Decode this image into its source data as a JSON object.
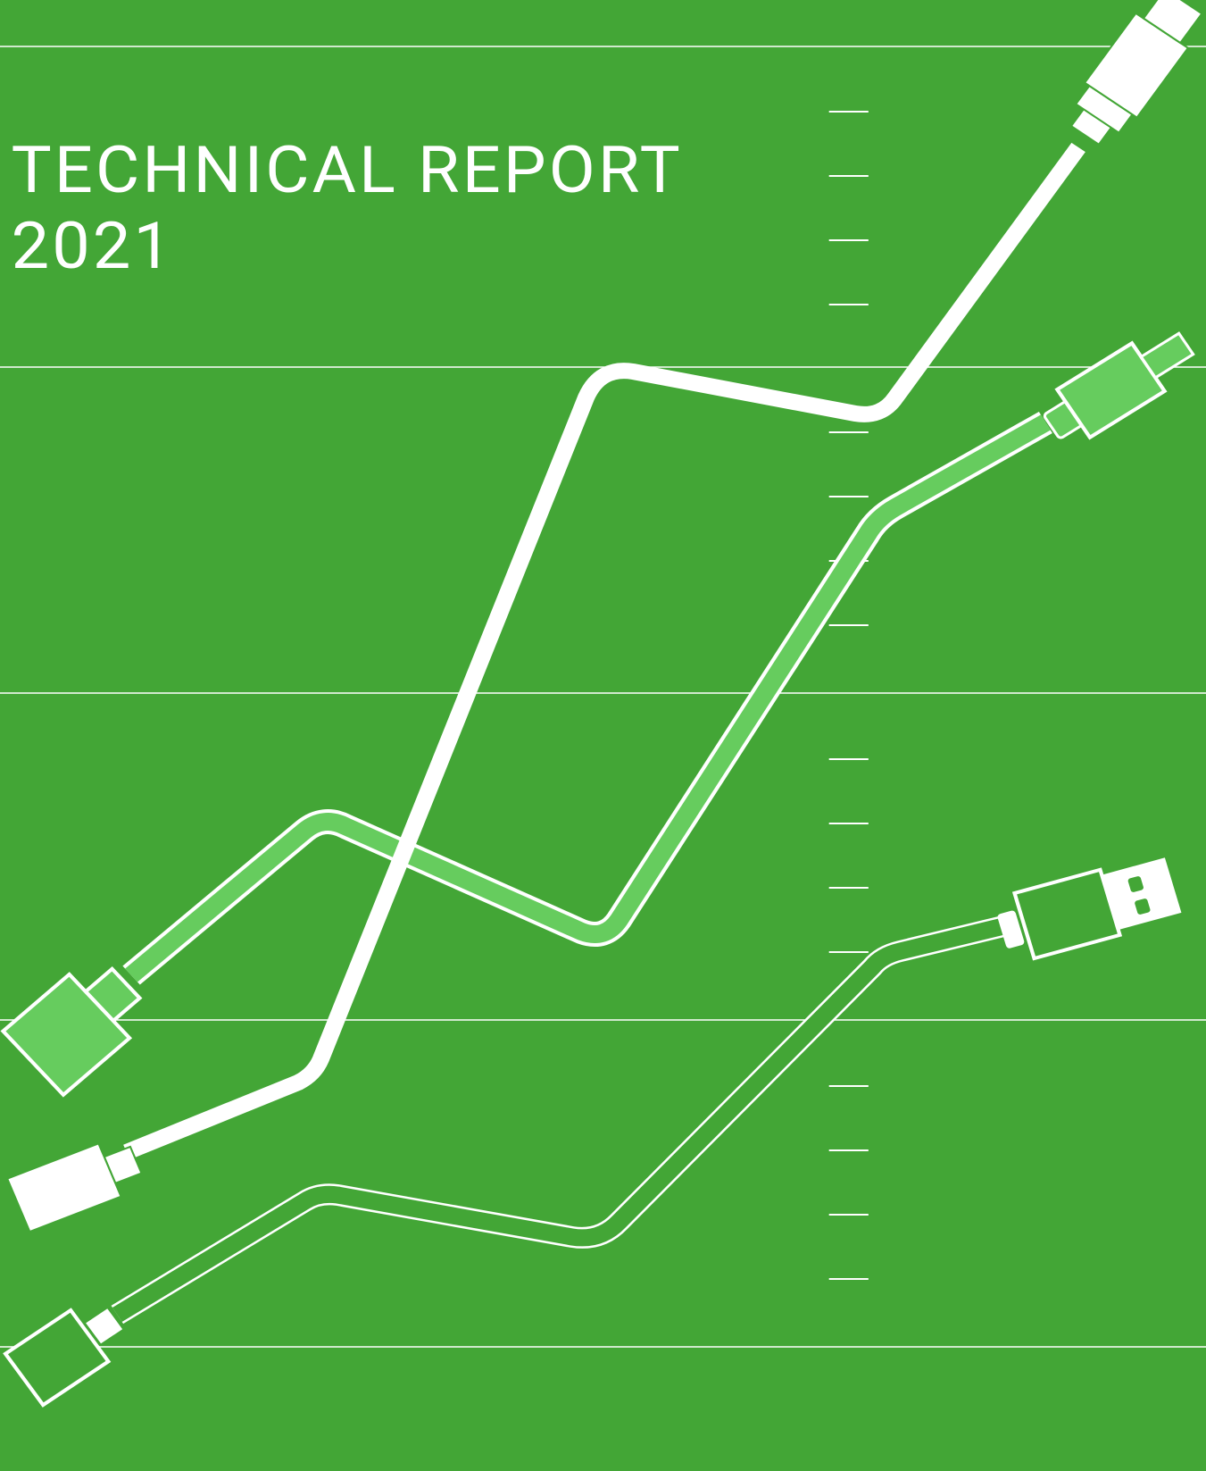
{
  "header": {
    "title": "TECHNICAL REPORT",
    "year": "2021"
  }
}
